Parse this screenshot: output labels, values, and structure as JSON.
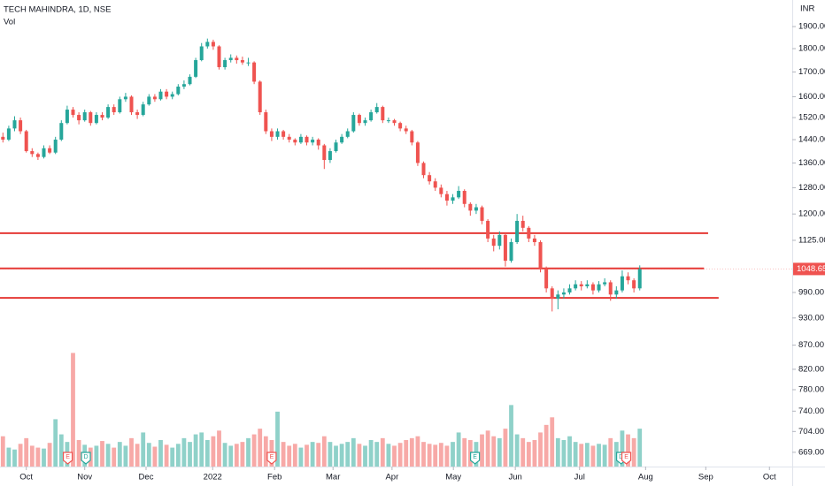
{
  "chart_data": {
    "type": "candlestick",
    "title": "TECH MAHINDRA, 1D, NSE",
    "subtitle": "Vol",
    "currency": "INR",
    "log_scale": true,
    "grid": false,
    "up_color": "#26a69a",
    "down_color": "#ef5350",
    "volume_up_color": "#8fd1c9",
    "volume_down_color": "#f7a9a7",
    "xlim": [
      0,
      135.6
    ],
    "xticks": [
      {
        "value": 4.5,
        "label": "Oct"
      },
      {
        "value": 14.5,
        "label": "Nov"
      },
      {
        "value": 25,
        "label": "Dec"
      },
      {
        "value": 36.4,
        "label": "2022"
      },
      {
        "value": 47,
        "label": "Feb"
      },
      {
        "value": 57,
        "label": "Mar"
      },
      {
        "value": 67.1,
        "label": "Apr"
      },
      {
        "value": 77.6,
        "label": "May"
      },
      {
        "value": 88.2,
        "label": "Jun"
      },
      {
        "value": 99.2,
        "label": "Jul"
      },
      {
        "value": 110.5,
        "label": "Aug"
      },
      {
        "value": 120.8,
        "label": "Sep"
      },
      {
        "value": 131.7,
        "label": "Oct"
      }
    ],
    "ylim": [
      646,
      2028
    ],
    "yticks": [
      {
        "value": 1900,
        "label": "1900.00"
      },
      {
        "value": 1800,
        "label": "1800.00"
      },
      {
        "value": 1700,
        "label": "1700.00"
      },
      {
        "value": 1600,
        "label": "1600.00"
      },
      {
        "value": 1520,
        "label": "1520.00"
      },
      {
        "value": 1440,
        "label": "1440.00"
      },
      {
        "value": 1360,
        "label": "1360.00"
      },
      {
        "value": 1280,
        "label": "1280.00"
      },
      {
        "value": 1200,
        "label": "1200.00"
      },
      {
        "value": 1125,
        "label": "1125.00"
      },
      {
        "value": 990,
        "label": "990.00"
      },
      {
        "value": 930,
        "label": "930.00"
      },
      {
        "value": 870,
        "label": "870.00"
      },
      {
        "value": 820,
        "label": "820.00"
      },
      {
        "value": 780,
        "label": "780.00"
      },
      {
        "value": 740,
        "label": "740.00"
      },
      {
        "value": 704,
        "label": "704.00"
      },
      {
        "value": 669,
        "label": "669.00"
      }
    ],
    "vlim": [
      0,
      14
    ],
    "x": [
      0,
      1,
      2,
      3,
      4,
      5,
      6,
      7,
      8,
      9,
      10,
      11,
      12,
      13,
      14,
      15,
      16,
      17,
      18,
      19,
      20,
      21,
      22,
      23,
      24,
      25,
      26,
      27,
      28,
      29,
      30,
      31,
      32,
      33,
      34,
      35,
      36,
      37,
      38,
      39,
      40,
      41,
      42,
      43,
      44,
      45,
      46,
      47,
      48,
      49,
      50,
      51,
      52,
      53,
      54,
      55,
      56,
      57,
      58,
      59,
      60,
      61,
      62,
      63,
      64,
      65,
      66,
      67,
      68,
      69,
      70,
      71,
      72,
      73,
      74,
      75,
      76,
      77,
      78,
      79,
      80,
      81,
      82,
      83,
      84,
      85,
      86,
      87,
      88,
      89,
      90,
      91,
      92,
      93,
      94,
      95,
      96,
      97,
      98,
      99,
      100,
      101,
      102,
      103,
      104,
      105,
      106,
      107,
      108,
      109
    ],
    "ohlc": [
      [
        1450,
        1465,
        1430,
        1440
      ],
      [
        1440,
        1490,
        1435,
        1480
      ],
      [
        1480,
        1525,
        1470,
        1510
      ],
      [
        1510,
        1520,
        1460,
        1470
      ],
      [
        1470,
        1475,
        1395,
        1400
      ],
      [
        1400,
        1410,
        1380,
        1390
      ],
      [
        1390,
        1395,
        1370,
        1380
      ],
      [
        1380,
        1420,
        1375,
        1410
      ],
      [
        1410,
        1420,
        1390,
        1395
      ],
      [
        1395,
        1450,
        1390,
        1440
      ],
      [
        1440,
        1510,
        1435,
        1500
      ],
      [
        1500,
        1565,
        1495,
        1550
      ],
      [
        1550,
        1560,
        1520,
        1530
      ],
      [
        1530,
        1540,
        1495,
        1510
      ],
      [
        1510,
        1550,
        1505,
        1540
      ],
      [
        1540,
        1545,
        1490,
        1500
      ],
      [
        1500,
        1540,
        1495,
        1530
      ],
      [
        1530,
        1540,
        1510,
        1520
      ],
      [
        1520,
        1570,
        1515,
        1560
      ],
      [
        1560,
        1570,
        1530,
        1540
      ],
      [
        1540,
        1600,
        1535,
        1590
      ],
      [
        1590,
        1615,
        1580,
        1600
      ],
      [
        1600,
        1605,
        1530,
        1540
      ],
      [
        1540,
        1550,
        1515,
        1530
      ],
      [
        1530,
        1580,
        1525,
        1570
      ],
      [
        1570,
        1610,
        1565,
        1600
      ],
      [
        1600,
        1610,
        1580,
        1590
      ],
      [
        1590,
        1630,
        1585,
        1620
      ],
      [
        1620,
        1630,
        1590,
        1600
      ],
      [
        1600,
        1620,
        1590,
        1610
      ],
      [
        1610,
        1650,
        1605,
        1640
      ],
      [
        1640,
        1665,
        1630,
        1650
      ],
      [
        1650,
        1690,
        1645,
        1680
      ],
      [
        1680,
        1760,
        1675,
        1750
      ],
      [
        1750,
        1825,
        1745,
        1810
      ],
      [
        1810,
        1845,
        1800,
        1830
      ],
      [
        1830,
        1840,
        1795,
        1810
      ],
      [
        1810,
        1815,
        1710,
        1720
      ],
      [
        1720,
        1760,
        1710,
        1750
      ],
      [
        1750,
        1775,
        1740,
        1760
      ],
      [
        1760,
        1770,
        1735,
        1750
      ],
      [
        1750,
        1765,
        1730,
        1740
      ],
      [
        1740,
        1760,
        1725,
        1740
      ],
      [
        1740,
        1745,
        1650,
        1660
      ],
      [
        1660,
        1665,
        1530,
        1540
      ],
      [
        1540,
        1550,
        1460,
        1470
      ],
      [
        1470,
        1480,
        1435,
        1450
      ],
      [
        1450,
        1480,
        1440,
        1470
      ],
      [
        1470,
        1475,
        1440,
        1450
      ],
      [
        1450,
        1460,
        1430,
        1440
      ],
      [
        1440,
        1445,
        1420,
        1430
      ],
      [
        1430,
        1460,
        1425,
        1450
      ],
      [
        1450,
        1455,
        1420,
        1430
      ],
      [
        1430,
        1450,
        1420,
        1440
      ],
      [
        1440,
        1445,
        1405,
        1420
      ],
      [
        1420,
        1425,
        1340,
        1370
      ],
      [
        1370,
        1410,
        1360,
        1400
      ],
      [
        1400,
        1440,
        1395,
        1430
      ],
      [
        1430,
        1460,
        1425,
        1450
      ],
      [
        1450,
        1480,
        1445,
        1470
      ],
      [
        1470,
        1540,
        1465,
        1530
      ],
      [
        1530,
        1535,
        1490,
        1500
      ],
      [
        1500,
        1520,
        1490,
        1510
      ],
      [
        1510,
        1550,
        1505,
        1540
      ],
      [
        1540,
        1575,
        1535,
        1560
      ],
      [
        1560,
        1565,
        1500,
        1510
      ],
      [
        1510,
        1520,
        1500,
        1510
      ],
      [
        1510,
        1515,
        1490,
        1500
      ],
      [
        1500,
        1505,
        1470,
        1480
      ],
      [
        1480,
        1490,
        1460,
        1470
      ],
      [
        1470,
        1475,
        1420,
        1430
      ],
      [
        1430,
        1435,
        1350,
        1360
      ],
      [
        1360,
        1365,
        1310,
        1320
      ],
      [
        1320,
        1330,
        1290,
        1300
      ],
      [
        1300,
        1310,
        1270,
        1280
      ],
      [
        1280,
        1290,
        1250,
        1260
      ],
      [
        1260,
        1270,
        1225,
        1240
      ],
      [
        1240,
        1260,
        1230,
        1250
      ],
      [
        1250,
        1285,
        1245,
        1270
      ],
      [
        1270,
        1275,
        1220,
        1230
      ],
      [
        1230,
        1235,
        1195,
        1210
      ],
      [
        1210,
        1230,
        1200,
        1220
      ],
      [
        1220,
        1225,
        1170,
        1180
      ],
      [
        1180,
        1185,
        1120,
        1130
      ],
      [
        1130,
        1140,
        1095,
        1110
      ],
      [
        1110,
        1150,
        1100,
        1140
      ],
      [
        1140,
        1145,
        1055,
        1070
      ],
      [
        1070,
        1130,
        1065,
        1120
      ],
      [
        1120,
        1200,
        1115,
        1180
      ],
      [
        1180,
        1195,
        1150,
        1160
      ],
      [
        1160,
        1165,
        1120,
        1130
      ],
      [
        1130,
        1140,
        1110,
        1120
      ],
      [
        1120,
        1125,
        1040,
        1050
      ],
      [
        1050,
        1055,
        990,
        1000
      ],
      [
        1000,
        1005,
        945,
        975
      ],
      [
        975,
        995,
        950,
        985
      ],
      [
        985,
        1000,
        975,
        990
      ],
      [
        990,
        1010,
        985,
        1000
      ],
      [
        1000,
        1020,
        995,
        1010
      ],
      [
        1010,
        1018,
        995,
        1005
      ],
      [
        1005,
        1020,
        1000,
        1010
      ],
      [
        1010,
        1015,
        985,
        995
      ],
      [
        995,
        1018,
        990,
        1010
      ],
      [
        1010,
        1025,
        1005,
        1015
      ],
      [
        1015,
        1020,
        970,
        985
      ],
      [
        985,
        1005,
        975,
        995
      ],
      [
        995,
        1045,
        990,
        1030
      ],
      [
        1030,
        1040,
        1010,
        1020
      ],
      [
        1020,
        1025,
        990,
        1000
      ],
      [
        1000,
        1058,
        995,
        1048.65
      ]
    ],
    "volume": [
      3.2,
      2.0,
      1.8,
      2.4,
      3.0,
      2.2,
      2.0,
      1.9,
      2.5,
      5.0,
      3.4,
      2.6,
      12.0,
      2.8,
      2.3,
      2.0,
      2.2,
      2.7,
      2.4,
      2.0,
      2.6,
      2.2,
      3.0,
      2.4,
      3.6,
      2.5,
      2.1,
      2.8,
      2.3,
      2.0,
      2.4,
      3.0,
      2.6,
      3.4,
      3.6,
      2.8,
      3.2,
      3.8,
      2.5,
      2.2,
      2.4,
      2.6,
      3.0,
      3.4,
      4.0,
      3.2,
      2.8,
      5.8,
      2.6,
      2.2,
      2.4,
      2.0,
      2.3,
      2.6,
      2.5,
      3.2,
      2.6,
      2.2,
      2.4,
      2.6,
      3.0,
      2.4,
      2.2,
      2.8,
      2.6,
      3.0,
      2.4,
      2.2,
      2.5,
      2.8,
      3.0,
      3.2,
      2.6,
      2.4,
      2.3,
      2.5,
      2.2,
      2.6,
      3.6,
      3.0,
      2.8,
      2.6,
      3.4,
      3.8,
      3.2,
      3.0,
      4.0,
      6.5,
      3.4,
      3.0,
      2.6,
      2.8,
      3.6,
      4.4,
      5.2,
      3.0,
      2.8,
      3.2,
      2.6,
      2.4,
      2.5,
      2.2,
      2.4,
      2.3,
      3.0,
      2.6,
      3.8,
      3.4,
      3.0,
      4.0
    ],
    "hlines": [
      {
        "value": 1145,
        "end": 121.2,
        "color": "#e53935"
      },
      {
        "value": 1050,
        "end": 120.5,
        "color": "#e53935"
      },
      {
        "value": 977,
        "end": 123,
        "color": "#e53935"
      }
    ],
    "events": [
      {
        "label": "E",
        "x": 11.6,
        "color": "#ef5350"
      },
      {
        "label": "D",
        "x": 14.7,
        "color": "#26a69a"
      },
      {
        "label": "E",
        "x": 46.5,
        "color": "#ef5350"
      },
      {
        "label": "E",
        "x": 81.3,
        "color": "#26a69a"
      },
      {
        "label": "D",
        "x": 106.3,
        "color": "#26a69a"
      },
      {
        "label": "E",
        "x": 107.2,
        "color": "#ef5350"
      }
    ]
  }
}
